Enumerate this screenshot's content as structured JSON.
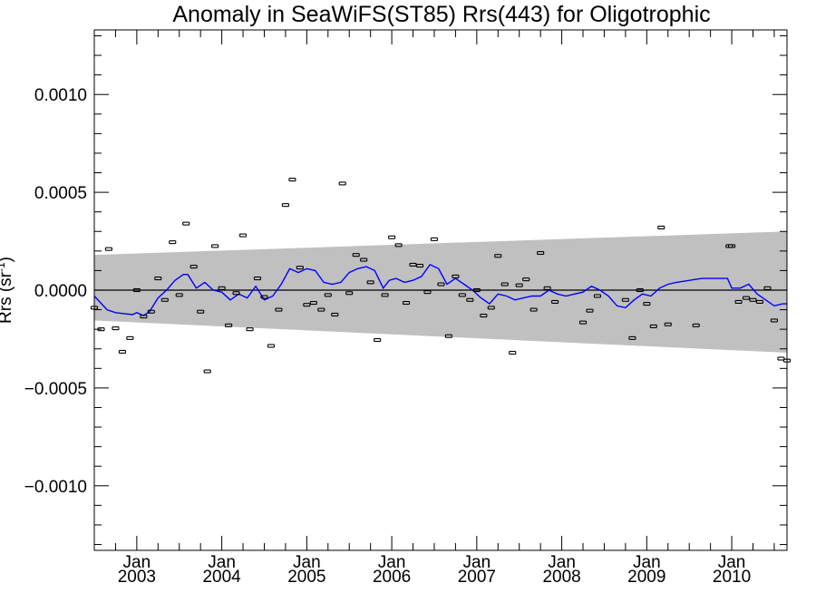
{
  "chart_data": {
    "type": "line",
    "title": "Anomaly in SeaWiFS(ST85) Rrs(443) for Oligotrophic",
    "ylabel_main": "Rrs (sr",
    "ylabel_sup": "-1",
    "ylabel_close": ")",
    "xlabel": "",
    "xlim": [
      2002.5,
      2010.65
    ],
    "ylim": [
      -0.00133,
      0.00133
    ],
    "y_ticks": [
      {
        "value": 0.001,
        "label": "0.0010"
      },
      {
        "value": 0.0005,
        "label": "0.0005"
      },
      {
        "value": 0.0,
        "label": "0.0000"
      },
      {
        "value": -0.0005,
        "label": "−0.0005"
      },
      {
        "value": -0.001,
        "label": "−0.0010"
      }
    ],
    "x_ticks": [
      {
        "value": 2003,
        "month": "Jan",
        "year": "2003"
      },
      {
        "value": 2004,
        "month": "Jan",
        "year": "2004"
      },
      {
        "value": 2005,
        "month": "Jan",
        "year": "2005"
      },
      {
        "value": 2006,
        "month": "Jan",
        "year": "2006"
      },
      {
        "value": 2007,
        "month": "Jan",
        "year": "2007"
      },
      {
        "value": 2008,
        "month": "Jan",
        "year": "2008"
      },
      {
        "value": 2009,
        "month": "Jan",
        "year": "2009"
      },
      {
        "value": 2010,
        "month": "Jan",
        "year": "2010"
      }
    ],
    "band": {
      "x": [
        2002.5,
        2010.65
      ],
      "upper": [
        0.00018,
        0.0003
      ],
      "lower": [
        -0.000155,
        -0.00032
      ],
      "color": "#c0c0c0"
    },
    "zero_line": 0.0,
    "series": [
      {
        "kind": "line",
        "color": "#0000ff",
        "x": [
          2002.5,
          2002.65,
          2002.75,
          2002.85,
          2002.95,
          2003.0,
          2003.08,
          2003.15,
          2003.25,
          2003.35,
          2003.45,
          2003.55,
          2003.6,
          2003.7,
          2003.8,
          2003.9,
          2004.0,
          2004.1,
          2004.2,
          2004.3,
          2004.4,
          2004.5,
          2004.6,
          2004.7,
          2004.8,
          2004.9,
          2005.0,
          2005.1,
          2005.2,
          2005.3,
          2005.4,
          2005.5,
          2005.6,
          2005.7,
          2005.8,
          2005.9,
          2005.97,
          2006.05,
          2006.15,
          2006.25,
          2006.35,
          2006.45,
          2006.55,
          2006.65,
          2006.75,
          2006.85,
          2006.95,
          2007.05,
          2007.15,
          2007.25,
          2007.35,
          2007.45,
          2007.55,
          2007.65,
          2007.75,
          2007.85,
          2007.95,
          2008.05,
          2008.15,
          2008.25,
          2008.35,
          2008.45,
          2008.55,
          2008.65,
          2008.75,
          2008.85,
          2008.95,
          2009.05,
          2009.15,
          2009.25,
          2009.35,
          2009.65,
          2009.95,
          2010.0,
          2010.1,
          2010.2,
          2010.3,
          2010.4,
          2010.5,
          2010.6,
          2010.65
        ],
        "y": [
          -3e-05,
          -0.0001,
          -0.000115,
          -0.00012,
          -0.000125,
          -0.000115,
          -0.00013,
          -0.00011,
          -4e-05,
          0.0,
          5e-05,
          8e-05,
          8e-05,
          1e-05,
          4e-05,
          0.0,
          -1e-05,
          -5e-05,
          -2e-05,
          -4e-05,
          2e-05,
          -5e-05,
          -3e-05,
          3e-05,
          0.00011,
          9e-05,
          0.00011,
          0.0001,
          4e-05,
          3e-05,
          4e-05,
          9e-05,
          0.00011,
          0.00012,
          0.0001,
          1e-05,
          5e-05,
          6e-05,
          4e-05,
          5e-05,
          7e-05,
          0.00013,
          0.00011,
          3e-05,
          6e-05,
          3e-05,
          0.0,
          -4e-05,
          -7e-05,
          -2e-05,
          -3e-05,
          -5e-05,
          -4e-05,
          -3e-05,
          -3e-05,
          0.0,
          -2e-05,
          -3e-05,
          -2e-05,
          -1e-05,
          2e-05,
          0.0,
          -3e-05,
          -8e-05,
          -9e-05,
          -5e-05,
          -2e-05,
          -3e-05,
          1e-05,
          3e-05,
          4e-05,
          6e-05,
          6e-05,
          1e-05,
          1e-05,
          3e-05,
          -2e-05,
          -5e-05,
          -8e-05,
          -7e-05,
          -7e-05
        ]
      },
      {
        "kind": "points",
        "color": "#000000",
        "x": [
          2002.5,
          2002.58,
          2002.67,
          2002.75,
          2002.83,
          2002.92,
          2003.0,
          2003.08,
          2003.17,
          2003.25,
          2003.33,
          2003.42,
          2003.5,
          2003.58,
          2003.67,
          2003.75,
          2003.83,
          2003.92,
          2004.0,
          2004.08,
          2004.17,
          2004.25,
          2004.33,
          2004.42,
          2004.5,
          2004.58,
          2004.67,
          2004.75,
          2004.83,
          2004.92,
          2005.0,
          2005.08,
          2005.17,
          2005.25,
          2005.33,
          2005.42,
          2005.5,
          2005.58,
          2005.67,
          2005.75,
          2005.83,
          2005.92,
          2006.0,
          2006.08,
          2006.17,
          2006.25,
          2006.33,
          2006.42,
          2006.5,
          2006.58,
          2006.67,
          2006.75,
          2006.83,
          2006.92,
          2007.0,
          2007.08,
          2007.17,
          2007.25,
          2007.33,
          2007.42,
          2007.5,
          2007.58,
          2007.67,
          2007.75,
          2007.83,
          2007.92,
          2008.25,
          2008.33,
          2008.42,
          2008.75,
          2008.83,
          2008.92,
          2009.0,
          2009.08,
          2009.17,
          2009.25,
          2009.58,
          2009.97,
          2010.0,
          2010.08,
          2010.17,
          2010.25,
          2010.33,
          2010.42,
          2010.5,
          2010.58,
          2010.65
        ],
        "y": [
          -9e-05,
          -0.0002,
          0.00021,
          -0.000195,
          -0.000315,
          -0.000245,
          0.0,
          -0.000135,
          -0.00011,
          6e-05,
          -5e-05,
          0.000245,
          -2.5e-05,
          0.00034,
          0.00012,
          -0.00011,
          -0.000415,
          0.000225,
          1e-05,
          -0.00018,
          -1.5e-05,
          0.00028,
          -0.0002,
          6e-05,
          -3.5e-05,
          -0.000285,
          -0.0001,
          0.000435,
          0.000565,
          0.000115,
          -7.5e-05,
          -6.5e-05,
          -0.0001,
          -2.5e-05,
          -0.000125,
          0.000545,
          -1.5e-05,
          0.00018,
          0.000155,
          4e-05,
          -0.000255,
          -2.5e-05,
          0.00027,
          0.00023,
          -6.5e-05,
          0.00013,
          0.000125,
          -1e-05,
          0.00026,
          3e-05,
          -0.000235,
          7e-05,
          -2.5e-05,
          -5e-05,
          0.0,
          -0.00013,
          -9e-05,
          0.000175,
          3e-05,
          -0.00032,
          2.5e-05,
          5.5e-05,
          -0.0001,
          0.00019,
          1e-05,
          -6e-05,
          -0.000165,
          -0.000105,
          -3e-05,
          -5e-05,
          -0.000245,
          0.0,
          -7e-05,
          -0.000185,
          0.00032,
          -0.000175,
          -0.00018,
          0.000225,
          0.000225,
          -6e-05,
          -4e-05,
          -5e-05,
          -6e-05,
          1e-05,
          -0.000155,
          -0.00035,
          -0.00036
        ]
      }
    ],
    "grid": false,
    "legend": "none"
  }
}
